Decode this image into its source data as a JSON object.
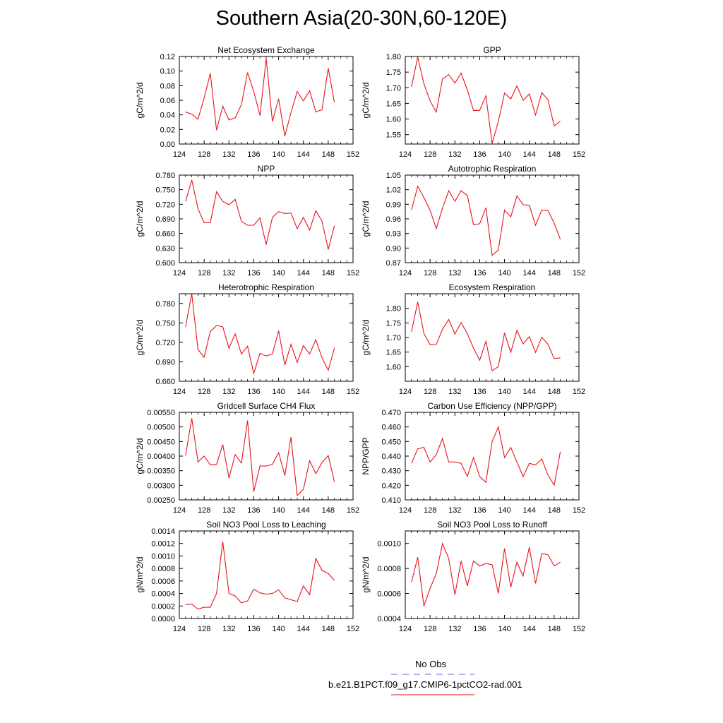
{
  "figure": {
    "title": "Southern Asia(20-30N,60-120E)",
    "line_color": "#e8131b",
    "obs_color": "#6a6ae0"
  },
  "legend": {
    "entries": [
      {
        "label": "No Obs",
        "style": "dashed",
        "color": "#6a6ae0"
      },
      {
        "label": "b.e21.B1PCT.f09_g17.CMIP6-1pctCO2-rad.001",
        "style": "solid",
        "color": "#e8131b"
      }
    ]
  },
  "chart_data": [
    {
      "type": "line",
      "title": "Net Ecosystem Exchange",
      "ylabel": "gC/m^2/d",
      "xlim": [
        124,
        152
      ],
      "xticks": [
        "124",
        "128",
        "132",
        "136",
        "140",
        "144",
        "148",
        "152"
      ],
      "ylim": [
        0.0,
        0.12
      ],
      "yticks": [
        "0.00",
        "0.02",
        "0.04",
        "0.06",
        "0.08",
        "0.10",
        "0.12"
      ],
      "x": [
        125,
        126,
        127,
        128,
        129,
        130,
        131,
        132,
        133,
        134,
        135,
        136,
        137,
        138,
        139,
        140,
        141,
        142,
        143,
        144,
        145,
        146,
        147,
        148,
        149
      ],
      "series": [
        {
          "name": "b.e21.B1PCT.f09_g17.CMIP6-1pctCO2-rad.001",
          "values": [
            0.044,
            0.041,
            0.034,
            0.063,
            0.097,
            0.019,
            0.052,
            0.033,
            0.036,
            0.054,
            0.098,
            0.072,
            0.039,
            0.117,
            0.031,
            0.062,
            0.011,
            0.043,
            0.072,
            0.059,
            0.073,
            0.044,
            0.047,
            0.104,
            0.057
          ]
        }
      ]
    },
    {
      "type": "line",
      "title": "GPP",
      "ylabel": "gC/m^2/d",
      "xlim": [
        124,
        152
      ],
      "xticks": [
        "124",
        "128",
        "132",
        "136",
        "140",
        "144",
        "148",
        "152"
      ],
      "ylim": [
        1.52,
        1.8
      ],
      "yticks": [
        "1.55",
        "1.60",
        "1.65",
        "1.70",
        "1.75",
        "1.80"
      ],
      "x": [
        125,
        126,
        127,
        128,
        129,
        130,
        131,
        132,
        133,
        134,
        135,
        136,
        137,
        138,
        139,
        140,
        141,
        142,
        143,
        144,
        145,
        146,
        147,
        148,
        149
      ],
      "series": [
        {
          "name": "b.e21.B1PCT.f09_g17.CMIP6-1pctCO2-rad.001",
          "values": [
            1.703,
            1.798,
            1.713,
            1.658,
            1.622,
            1.728,
            1.742,
            1.715,
            1.747,
            1.693,
            1.627,
            1.628,
            1.674,
            1.522,
            1.592,
            1.683,
            1.664,
            1.706,
            1.66,
            1.68,
            1.613,
            1.684,
            1.662,
            1.578,
            1.593
          ]
        }
      ]
    },
    {
      "type": "line",
      "title": "NPP",
      "ylabel": "gC/m^2/d",
      "xlim": [
        124,
        152
      ],
      "xticks": [
        "124",
        "128",
        "132",
        "136",
        "140",
        "144",
        "148",
        "152"
      ],
      "ylim": [
        0.6,
        0.78
      ],
      "yticks": [
        "0.600",
        "0.630",
        "0.660",
        "0.690",
        "0.720",
        "0.750",
        "0.780"
      ],
      "x": [
        125,
        126,
        127,
        128,
        129,
        130,
        131,
        132,
        133,
        134,
        135,
        136,
        137,
        138,
        139,
        140,
        141,
        142,
        143,
        144,
        145,
        146,
        147,
        148,
        149
      ],
      "series": [
        {
          "name": "b.e21.B1PCT.f09_g17.CMIP6-1pctCO2-rad.001",
          "values": [
            0.726,
            0.77,
            0.711,
            0.682,
            0.682,
            0.746,
            0.726,
            0.719,
            0.73,
            0.685,
            0.677,
            0.677,
            0.692,
            0.637,
            0.693,
            0.705,
            0.701,
            0.702,
            0.67,
            0.693,
            0.667,
            0.707,
            0.685,
            0.627,
            0.676
          ]
        }
      ]
    },
    {
      "type": "line",
      "title": "Autotrophic Respiration",
      "ylabel": "gC/m^2/d",
      "xlim": [
        124,
        152
      ],
      "xticks": [
        "124",
        "128",
        "132",
        "136",
        "140",
        "144",
        "148",
        "152"
      ],
      "ylim": [
        0.87,
        1.05
      ],
      "yticks": [
        "0.87",
        "0.90",
        "0.93",
        "0.96",
        "0.99",
        "1.02",
        "1.05"
      ],
      "x": [
        125,
        126,
        127,
        128,
        129,
        130,
        131,
        132,
        133,
        134,
        135,
        136,
        137,
        138,
        139,
        140,
        141,
        142,
        143,
        144,
        145,
        146,
        147,
        148,
        149
      ],
      "series": [
        {
          "name": "b.e21.B1PCT.f09_g17.CMIP6-1pctCO2-rad.001",
          "values": [
            0.978,
            1.027,
            1.004,
            0.978,
            0.94,
            0.982,
            1.018,
            0.996,
            1.018,
            1.008,
            0.948,
            0.95,
            0.983,
            0.885,
            0.896,
            0.978,
            0.964,
            1.007,
            0.989,
            0.988,
            0.947,
            0.978,
            0.977,
            0.951,
            0.918
          ]
        }
      ]
    },
    {
      "type": "line",
      "title": "Heterotrophic Respiration",
      "ylabel": "gC/m^2/d",
      "xlim": [
        124,
        152
      ],
      "xticks": [
        "124",
        "128",
        "132",
        "136",
        "140",
        "144",
        "148",
        "152"
      ],
      "ylim": [
        0.66,
        0.795
      ],
      "yticks": [
        "0.660",
        "0.690",
        "0.720",
        "0.750",
        "0.780"
      ],
      "x": [
        125,
        126,
        127,
        128,
        129,
        130,
        131,
        132,
        133,
        134,
        135,
        136,
        137,
        138,
        139,
        140,
        141,
        142,
        143,
        144,
        145,
        146,
        147,
        148,
        149
      ],
      "series": [
        {
          "name": "b.e21.B1PCT.f09_g17.CMIP6-1pctCO2-rad.001",
          "values": [
            0.744,
            0.795,
            0.709,
            0.697,
            0.737,
            0.746,
            0.744,
            0.711,
            0.733,
            0.702,
            0.714,
            0.672,
            0.703,
            0.699,
            0.702,
            0.738,
            0.685,
            0.717,
            0.689,
            0.715,
            0.702,
            0.724,
            0.696,
            0.677,
            0.711
          ]
        }
      ]
    },
    {
      "type": "line",
      "title": "Ecosystem Respiration",
      "ylabel": "gC/m^2/d",
      "xlim": [
        124,
        152
      ],
      "xticks": [
        "124",
        "128",
        "132",
        "136",
        "140",
        "144",
        "148",
        "152"
      ],
      "ylim": [
        1.55,
        1.85
      ],
      "yticks": [
        "1.60",
        "1.65",
        "1.70",
        "1.75",
        "1.80"
      ],
      "x": [
        125,
        126,
        127,
        128,
        129,
        130,
        131,
        132,
        133,
        134,
        135,
        136,
        137,
        138,
        139,
        140,
        141,
        142,
        143,
        144,
        145,
        146,
        147,
        148,
        149
      ],
      "series": [
        {
          "name": "b.e21.B1PCT.f09_g17.CMIP6-1pctCO2-rad.001",
          "values": [
            1.72,
            1.822,
            1.714,
            1.675,
            1.676,
            1.728,
            1.762,
            1.712,
            1.751,
            1.713,
            1.664,
            1.622,
            1.687,
            1.586,
            1.6,
            1.716,
            1.649,
            1.724,
            1.678,
            1.703,
            1.649,
            1.701,
            1.677,
            1.628,
            1.63
          ]
        }
      ]
    },
    {
      "type": "line",
      "title": "Gridcell Surface CH4 Flux",
      "ylabel": "gC/m^2/d",
      "xlim": [
        124,
        152
      ],
      "xticks": [
        "124",
        "128",
        "132",
        "136",
        "140",
        "144",
        "148",
        "152"
      ],
      "ylim": [
        0.0025,
        0.0055
      ],
      "yticks": [
        "0.00250",
        "0.00300",
        "0.00350",
        "0.00400",
        "0.00450",
        "0.00500",
        "0.00550"
      ],
      "x": [
        125,
        126,
        127,
        128,
        129,
        130,
        131,
        132,
        133,
        134,
        135,
        136,
        137,
        138,
        139,
        140,
        141,
        142,
        143,
        144,
        145,
        146,
        147,
        148,
        149
      ],
      "series": [
        {
          "name": "b.e21.B1PCT.f09_g17.CMIP6-1pctCO2-rad.001",
          "values": [
            0.00402,
            0.0053,
            0.0038,
            0.004,
            0.0037,
            0.00372,
            0.0044,
            0.00325,
            0.00405,
            0.00376,
            0.00522,
            0.00278,
            0.00366,
            0.00366,
            0.00372,
            0.00412,
            0.00333,
            0.00465,
            0.00265,
            0.00286,
            0.00384,
            0.0034,
            0.00378,
            0.00402,
            0.00312
          ]
        }
      ]
    },
    {
      "type": "line",
      "title": "Carbon Use Efficiency (NPP/GPP)",
      "ylabel": "NPP/GPP",
      "xlim": [
        124,
        152
      ],
      "xticks": [
        "124",
        "128",
        "132",
        "136",
        "140",
        "144",
        "148",
        "152"
      ],
      "ylim": [
        0.41,
        0.47
      ],
      "yticks": [
        "0.410",
        "0.420",
        "0.430",
        "0.440",
        "0.450",
        "0.460",
        "0.470"
      ],
      "x": [
        125,
        126,
        127,
        128,
        129,
        130,
        131,
        132,
        133,
        134,
        135,
        136,
        137,
        138,
        139,
        140,
        141,
        142,
        143,
        144,
        145,
        146,
        147,
        148,
        149
      ],
      "series": [
        {
          "name": "b.e21.B1PCT.f09_g17.CMIP6-1pctCO2-rad.001",
          "values": [
            0.435,
            0.445,
            0.446,
            0.436,
            0.441,
            0.452,
            0.436,
            0.436,
            0.435,
            0.426,
            0.439,
            0.426,
            0.422,
            0.45,
            0.46,
            0.439,
            0.446,
            0.436,
            0.426,
            0.435,
            0.434,
            0.438,
            0.427,
            0.42,
            0.443
          ]
        }
      ]
    },
    {
      "type": "line",
      "title": "Soil NO3 Pool Loss to Leaching",
      "ylabel": "gN/m^2/d",
      "xlim": [
        124,
        152
      ],
      "xticks": [
        "124",
        "128",
        "132",
        "136",
        "140",
        "144",
        "148",
        "152"
      ],
      "ylim": [
        0.0,
        0.0014
      ],
      "yticks": [
        "0.0000",
        "0.0002",
        "0.0004",
        "0.0006",
        "0.0008",
        "0.0010",
        "0.0012",
        "0.0014"
      ],
      "x": [
        125,
        126,
        127,
        128,
        129,
        130,
        131,
        132,
        133,
        134,
        135,
        136,
        137,
        138,
        139,
        140,
        141,
        142,
        143,
        144,
        145,
        146,
        147,
        148,
        149
      ],
      "series": [
        {
          "name": "b.e21.B1PCT.f09_g17.CMIP6-1pctCO2-rad.001",
          "values": [
            0.00022,
            0.00023,
            0.00015,
            0.00018,
            0.00018,
            0.0004,
            0.00123,
            0.0004,
            0.00036,
            0.00025,
            0.00028,
            0.00047,
            0.00041,
            0.00039,
            0.0004,
            0.00046,
            0.00033,
            0.0003,
            0.00027,
            0.00052,
            0.00038,
            0.00096,
            0.00077,
            0.00072,
            0.00061
          ]
        }
      ]
    },
    {
      "type": "line",
      "title": "Soil NO3 Pool Loss to Runoff",
      "ylabel": "gN/m^2/d",
      "xlim": [
        124,
        152
      ],
      "xticks": [
        "124",
        "128",
        "132",
        "136",
        "140",
        "144",
        "148",
        "152"
      ],
      "ylim": [
        0.0004,
        0.0011
      ],
      "yticks": [
        "0.0004",
        "0.0006",
        "0.0008",
        "0.0010"
      ],
      "x": [
        125,
        126,
        127,
        128,
        129,
        130,
        131,
        132,
        133,
        134,
        135,
        136,
        137,
        138,
        139,
        140,
        141,
        142,
        143,
        144,
        145,
        146,
        147,
        148,
        149
      ],
      "series": [
        {
          "name": "b.e21.B1PCT.f09_g17.CMIP6-1pctCO2-rad.001",
          "values": [
            0.00069,
            0.00089,
            0.0005,
            0.00064,
            0.00076,
            0.001,
            0.00088,
            0.00059,
            0.00086,
            0.00066,
            0.00086,
            0.00082,
            0.00084,
            0.00083,
            0.0006,
            0.00096,
            0.00065,
            0.00085,
            0.00074,
            0.00097,
            0.00068,
            0.00092,
            0.00091,
            0.00082,
            0.00085
          ]
        }
      ]
    }
  ]
}
